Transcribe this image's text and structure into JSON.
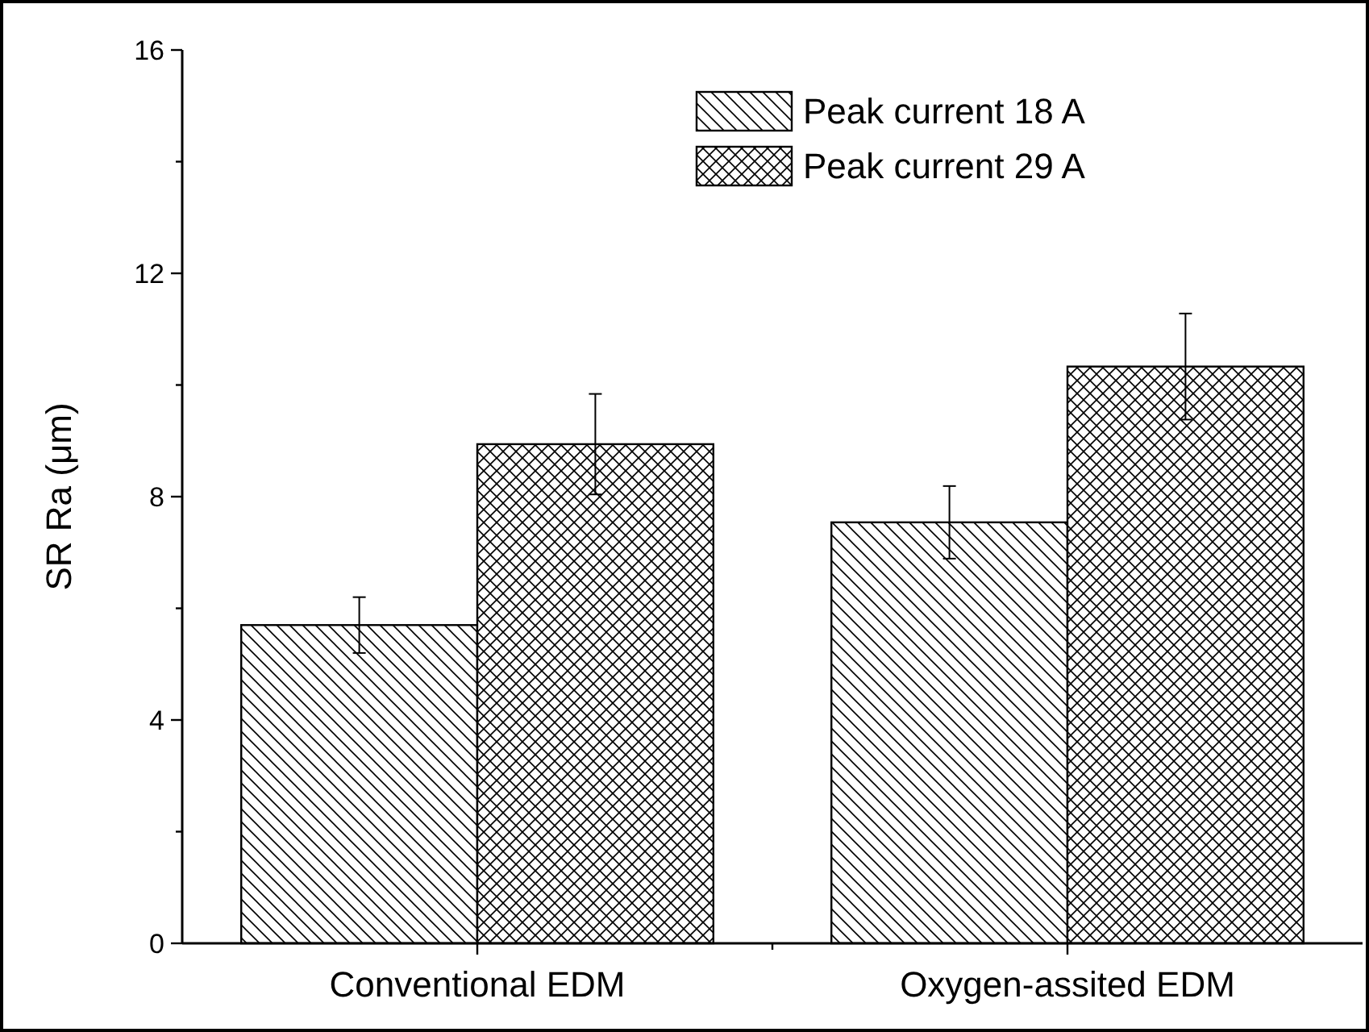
{
  "chart_data": {
    "type": "bar",
    "ylabel": "SR Ra (μm)",
    "categories": [
      "Conventional EDM",
      "Oxygen-assited EDM"
    ],
    "series": [
      {
        "name": "Peak current 18 A",
        "color": "#000000",
        "values": [
          5.7,
          7.54
        ],
        "errors": [
          0.5,
          0.65
        ]
      },
      {
        "name": "Peak current 29 A",
        "color": "#000000",
        "values": [
          8.94,
          10.33
        ],
        "errors": [
          0.9,
          0.95
        ]
      }
    ],
    "ylim": [
      0,
      16
    ],
    "yticks": [
      0,
      {
        "value": 2,
        "label": null
      },
      4,
      {
        "value": 6,
        "label": null
      },
      8,
      {
        "value": 10,
        "label": null
      },
      12,
      {
        "value": 14,
        "label": null
      },
      16
    ],
    "grid": false,
    "legend": "top right"
  }
}
